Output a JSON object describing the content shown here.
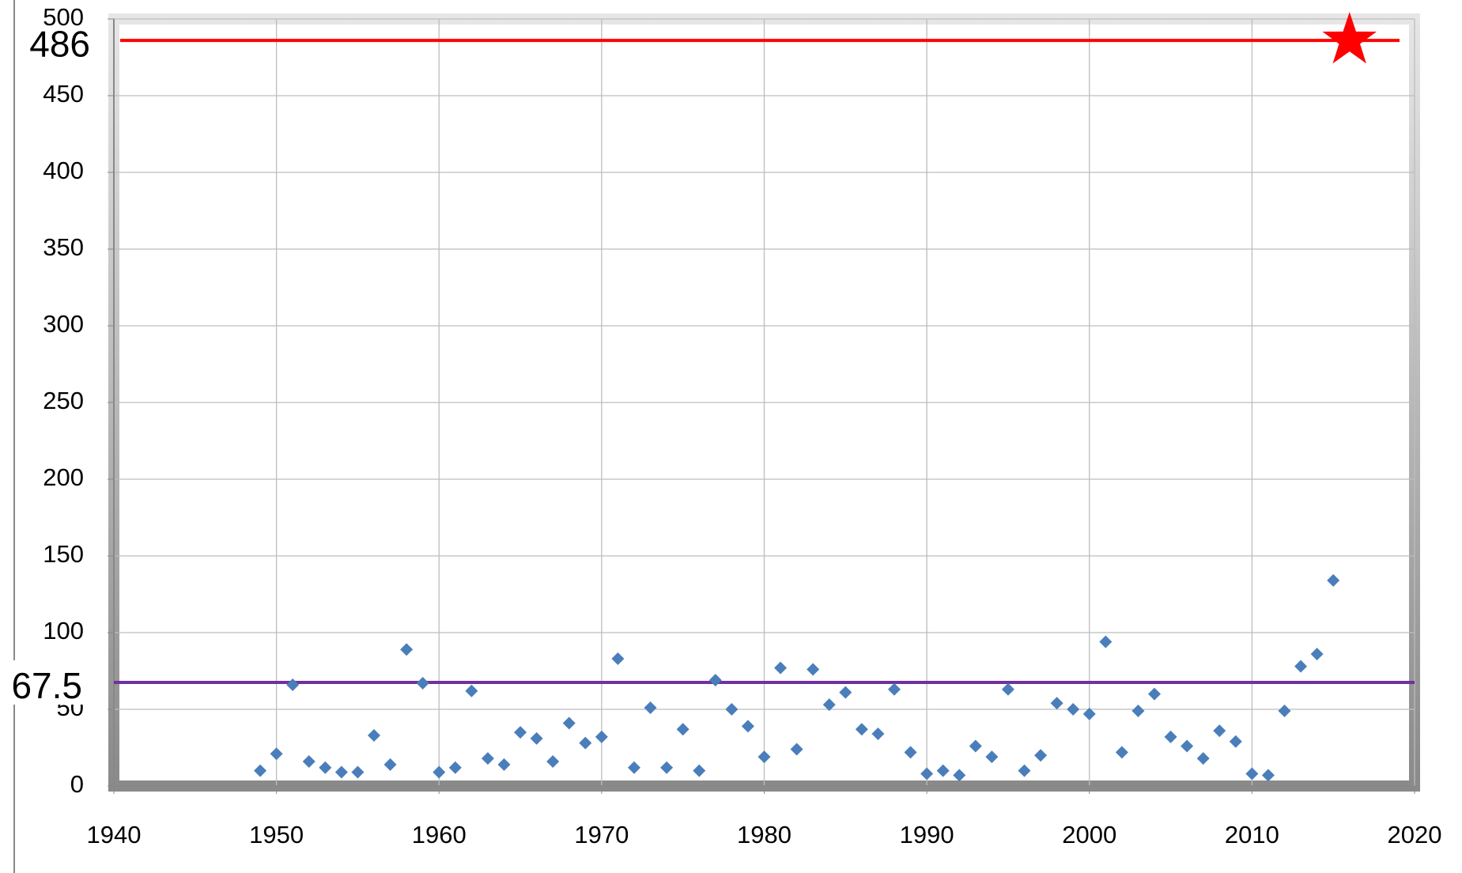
{
  "chart_data": {
    "type": "scatter",
    "x": [
      1949,
      1950,
      1951,
      1952,
      1953,
      1954,
      1955,
      1956,
      1957,
      1958,
      1959,
      1960,
      1961,
      1962,
      1963,
      1964,
      1965,
      1966,
      1967,
      1968,
      1969,
      1970,
      1971,
      1972,
      1973,
      1974,
      1975,
      1976,
      1977,
      1978,
      1979,
      1980,
      1981,
      1982,
      1983,
      1984,
      1985,
      1986,
      1987,
      1988,
      1989,
      1990,
      1991,
      1992,
      1993,
      1994,
      1995,
      1996,
      1997,
      1998,
      1999,
      2000,
      2001,
      2002,
      2003,
      2004,
      2005,
      2006,
      2007,
      2008,
      2009,
      2010,
      2011,
      2012,
      2013,
      2014,
      2015
    ],
    "series": [
      {
        "color": "#4a7ebb",
        "values": [
          10,
          21,
          66,
          16,
          12,
          9,
          9,
          33,
          14,
          89,
          67,
          9,
          12,
          62,
          18,
          14,
          35,
          31,
          16,
          41,
          28,
          32,
          83,
          12,
          51,
          12,
          37,
          10,
          69,
          50,
          39,
          19,
          77,
          24,
          76,
          53,
          61,
          37,
          34,
          63,
          22,
          8,
          10,
          7,
          26,
          19,
          63,
          10,
          20,
          54,
          50,
          47,
          94,
          22,
          49,
          60,
          32,
          26,
          18,
          36,
          29,
          8,
          7,
          49,
          78,
          86,
          134
        ]
      }
    ],
    "reference_lines": [
      {
        "value": 486,
        "label": "486",
        "color": "#ff0000"
      },
      {
        "value": 67.5,
        "label": "67.5",
        "color": "#7030a0"
      }
    ],
    "marker": {
      "x": 2016,
      "y": 486,
      "color": "#ff0000"
    },
    "xlim": [
      1940,
      2020
    ],
    "xticks": [
      1940,
      1950,
      1960,
      1970,
      1980,
      1990,
      2000,
      2010,
      2020
    ],
    "ylim": [
      0,
      500
    ],
    "yticks": [
      0,
      50,
      100,
      150,
      200,
      250,
      300,
      350,
      400,
      450,
      500
    ],
    "grid": true
  }
}
